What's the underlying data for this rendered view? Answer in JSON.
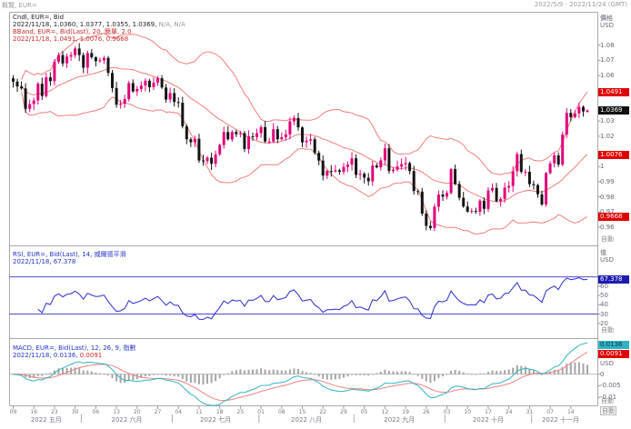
{
  "header": {
    "left": "概覽, EUR=",
    "right": "2022/5/9 - 2022/11/24 (GMT)"
  },
  "panels": {
    "price": {
      "legend": {
        "line1": "Cndl, EUR=, Bid",
        "line2": "2022/11/18, 1.0360, 1.0377, 1.0355, 1.0369,",
        "line2_na": "N/A, N/A",
        "line3": "BBand, EUR=, Bid(Last), 20, 簡單, 2.0",
        "line4": "2022/11/18, 1.0491, 1.0076, 0.9668"
      },
      "axis": {
        "title": "價格",
        "unit": "USD",
        "ticks": [
          {
            "label": "1.08",
            "value": 1.08
          },
          {
            "label": "1.07",
            "value": 1.07
          },
          {
            "label": "1.06",
            "value": 1.06
          },
          {
            "label": "1.03",
            "value": 1.03
          },
          {
            "label": "1.02",
            "value": 1.02
          },
          {
            "label": "1",
            "value": 1.0
          },
          {
            "label": "0.99",
            "value": 0.99
          },
          {
            "label": "0.98",
            "value": 0.98
          },
          {
            "label": "0.97",
            "value": 0.97
          },
          {
            "label": "0.96",
            "value": 0.96
          }
        ],
        "badges": [
          {
            "label": "1.0491",
            "value": 1.0491,
            "bg": "#e00000",
            "fg": "#ffffff"
          },
          {
            "label": "1.0369",
            "value": 1.0369,
            "bg": "#111111",
            "fg": "#ffffff"
          },
          {
            "label": "1.0076",
            "value": 1.0076,
            "bg": "#e00000",
            "fg": "#ffffff"
          },
          {
            "label": "0.9668",
            "value": 0.9668,
            "bg": "#e00000",
            "fg": "#ffffff"
          }
        ],
        "auto": "自動"
      }
    },
    "rsi": {
      "legend": {
        "line1": "RSI, EUR=, Bid(Last), 14, 威爾德平滑",
        "line2": "2022/11/18, 67.378"
      },
      "axis": {
        "title": "值",
        "unit": "USD",
        "ticks": [
          {
            "label": "60",
            "value": 60
          },
          {
            "label": "50",
            "value": 50
          },
          {
            "label": "40",
            "value": 40
          },
          {
            "label": "30",
            "value": 30
          },
          {
            "label": "20",
            "value": 20
          }
        ],
        "badge": {
          "label": "67.378",
          "value": 67.378,
          "bg": "#1c1cb0",
          "fg": "#ffffff"
        },
        "auto": "自動"
      }
    },
    "macd": {
      "legend": {
        "line1": "MACD, EUR=, Bid(Last), 12, 26, 9, 指數",
        "line2": "2022/11/18, 0.0136,",
        "line2_red": "0.0091"
      },
      "axis": {
        "unit": "USD",
        "ticks": [
          {
            "label": "0",
            "value": 0
          },
          {
            "label": "-0.005",
            "value": -0.005
          },
          {
            "label": "-0.01",
            "value": -0.01
          }
        ],
        "badges": [
          {
            "label": "0.0136",
            "value": 0.0136,
            "bg": "#2fb3c4",
            "fg": "#113344"
          },
          {
            "label": "0.0091",
            "value": 0.0091,
            "bg": "#e00000",
            "fg": "#ffffff"
          }
        ],
        "auto": "自動"
      }
    }
  },
  "time_axis": {
    "auto": "自動",
    "day_ticks": [
      {
        "i": 0,
        "label": "09"
      },
      {
        "i": 5,
        "label": "16"
      },
      {
        "i": 10,
        "label": "23"
      },
      {
        "i": 15,
        "label": "30"
      },
      {
        "i": 20,
        "label": "06"
      },
      {
        "i": 25,
        "label": "13"
      },
      {
        "i": 30,
        "label": "20"
      },
      {
        "i": 35,
        "label": "27"
      },
      {
        "i": 40,
        "label": "04"
      },
      {
        "i": 45,
        "label": "11"
      },
      {
        "i": 50,
        "label": "18"
      },
      {
        "i": 55,
        "label": "25"
      },
      {
        "i": 60,
        "label": "01"
      },
      {
        "i": 65,
        "label": "08"
      },
      {
        "i": 70,
        "label": "15"
      },
      {
        "i": 75,
        "label": "22"
      },
      {
        "i": 80,
        "label": "29"
      },
      {
        "i": 85,
        "label": "05"
      },
      {
        "i": 90,
        "label": "12"
      },
      {
        "i": 95,
        "label": "19"
      },
      {
        "i": 100,
        "label": "26"
      },
      {
        "i": 105,
        "label": "03"
      },
      {
        "i": 110,
        "label": "10"
      },
      {
        "i": 115,
        "label": "17"
      },
      {
        "i": 120,
        "label": "24"
      },
      {
        "i": 125,
        "label": "31"
      },
      {
        "i": 130,
        "label": "07"
      },
      {
        "i": 135,
        "label": "14"
      }
    ],
    "months": [
      {
        "i": 8,
        "label": "2022 五月"
      },
      {
        "i": 27.5,
        "label": "2022 六月"
      },
      {
        "i": 49,
        "label": "2022 七月"
      },
      {
        "i": 71,
        "label": "2022 八月"
      },
      {
        "i": 93.5,
        "label": "2022 九月"
      },
      {
        "i": 115,
        "label": "2022 十月"
      },
      {
        "i": 132.5,
        "label": "2022 十一月"
      }
    ],
    "separators": [
      16.5,
      38.5,
      59.5,
      82.5,
      104.5,
      125.5
    ]
  },
  "colors": {
    "candle_up": "#e2007a",
    "candle_down": "#141414",
    "bband": "#f07d7d",
    "rsi_line": "#2a2ace",
    "rsi_threshold": "#4c4cd0",
    "macd_line": "#2fb3c4",
    "macd_signal": "#ef8080",
    "macd_hist": "#a5a5a5",
    "frame": "#a8a8a8",
    "tick_text": "#667788"
  },
  "chart_data": {
    "type": "candlestick",
    "instrument": "EUR=",
    "quote": "Bid",
    "interval": "daily",
    "start_date": "2022-05-09",
    "end_date": "2022-11-18",
    "price_range": [
      0.948,
      1.102
    ],
    "rsi_range": [
      8,
      100
    ],
    "macd_range": [
      -0.0135,
      0.0148
    ],
    "last_ohlc": {
      "date": "2022/11/18",
      "open": 1.036,
      "high": 1.0377,
      "low": 1.0355,
      "close": 1.0369
    },
    "close": [
      1.056,
      1.0528,
      1.0515,
      1.038,
      1.0412,
      1.0435,
      1.0546,
      1.0465,
      1.0588,
      1.0563,
      1.0691,
      1.0735,
      1.068,
      1.0725,
      1.0735,
      1.0778,
      1.0735,
      1.0652,
      1.0748,
      1.072,
      1.0695,
      1.07,
      1.0716,
      1.0617,
      1.0518,
      1.0408,
      1.0414,
      1.0444,
      1.055,
      1.0495,
      1.0511,
      1.0534,
      1.0566,
      1.0523,
      1.0553,
      1.0582,
      1.0521,
      1.0442,
      1.0484,
      1.0425,
      1.0421,
      1.0265,
      1.018,
      1.016,
      1.0183,
      1.004,
      1.0036,
      1.0058,
      1.0018,
      1.008,
      1.0142,
      1.0227,
      1.0179,
      1.0228,
      1.0213,
      1.022,
      1.0115,
      1.0199,
      1.0195,
      1.022,
      1.026,
      1.0165,
      1.0165,
      1.0246,
      1.018,
      1.0193,
      1.0212,
      1.0298,
      1.032,
      1.0258,
      1.016,
      1.0171,
      1.018,
      1.009,
      1.0039,
      0.994,
      0.997,
      0.9968,
      0.9975,
      0.9965,
      0.9997,
      1.0012,
      1.0054,
      0.9945,
      0.9952,
      0.9926,
      0.9903,
      1.0007,
      0.9995,
      1.0041,
      1.012,
      0.997,
      0.9979,
      1.0,
      1.0016,
      1.0023,
      0.997,
      0.9838,
      0.9835,
      0.969,
      0.9609,
      0.9594,
      0.9735,
      0.9815,
      0.9802,
      0.9826,
      0.9983,
      0.9885,
      0.9794,
      0.9737,
      0.9703,
      0.9707,
      0.9702,
      0.9775,
      0.9721,
      0.9842,
      0.9859,
      0.9772,
      0.9785,
      0.9861,
      0.9872,
      0.9969,
      1.0082,
      0.9965,
      0.9965,
      0.9884,
      0.9877,
      0.9817,
      0.975,
      0.9957,
      1.002,
      1.0073,
      1.0013,
      1.021,
      1.0354,
      1.0325,
      1.035,
      1.0393,
      1.0363,
      1.0369
    ],
    "indicators": {
      "bbands": {
        "period": 20,
        "type": "簡單",
        "stdev": 2.0,
        "last_upper": 1.0491,
        "last_middle": 1.0076,
        "last_lower": 0.9668
      },
      "rsi": {
        "period": 14,
        "smoothing": "威爾德平滑",
        "last": 67.378,
        "overbought": 70,
        "oversold": 30
      },
      "macd": {
        "fast": 12,
        "slow": 26,
        "signal": 9,
        "ma_type": "指數",
        "last_macd": 0.0136,
        "last_signal": 0.0091
      }
    }
  }
}
